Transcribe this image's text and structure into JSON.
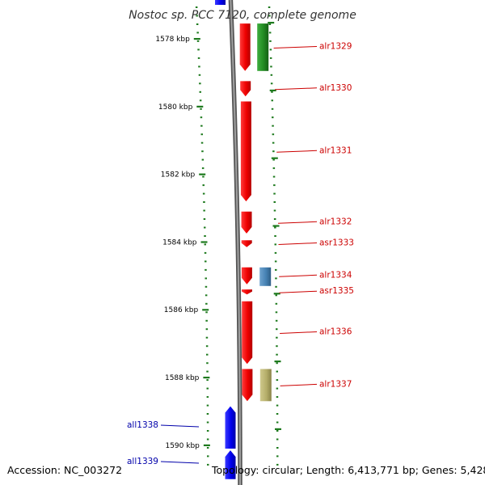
{
  "title": "Nostoc sp. PCC 7120, complete genome",
  "footer": {
    "accession": "Accession: NC_003272",
    "topology": "Topology: circular; Length: 6,413,771 bp; Genes: 5,428"
  },
  "colors": {
    "forward_label": "#cc0000",
    "reverse_label": "#0000aa",
    "tick": "#1e7a1e",
    "backbone": "#777777"
  },
  "axis": {
    "unit": "kbp",
    "ticks": [
      {
        "kbp": 1578,
        "label": "1578 kbp"
      },
      {
        "kbp": 1580,
        "label": "1580 kbp"
      },
      {
        "kbp": 1582,
        "label": "1582 kbp"
      },
      {
        "kbp": 1584,
        "label": "1584 kbp"
      },
      {
        "kbp": 1586,
        "label": "1586 kbp"
      },
      {
        "kbp": 1588,
        "label": "1588 kbp"
      },
      {
        "kbp": 1590,
        "label": "1590 kbp"
      }
    ]
  },
  "genes": [
    {
      "id": "alr1329",
      "strand": "+",
      "start_kbp": 1577.55,
      "end_kbp": 1578.95,
      "color": "#ee0000"
    },
    {
      "id": "alr1330",
      "strand": "+",
      "start_kbp": 1579.25,
      "end_kbp": 1579.7,
      "color": "#ee0000"
    },
    {
      "id": "alr1331",
      "strand": "+",
      "start_kbp": 1579.85,
      "end_kbp": 1582.8,
      "color": "#ee0000"
    },
    {
      "id": "alr1332",
      "strand": "+",
      "start_kbp": 1583.1,
      "end_kbp": 1583.75,
      "color": "#ee0000"
    },
    {
      "id": "asr1333",
      "strand": "+",
      "start_kbp": 1583.95,
      "end_kbp": 1584.15,
      "color": "#ee0000"
    },
    {
      "id": "alr1334",
      "strand": "+",
      "start_kbp": 1584.75,
      "end_kbp": 1585.25,
      "color": "#ee0000"
    },
    {
      "id": "asr1335",
      "strand": "+",
      "start_kbp": 1585.4,
      "end_kbp": 1585.55,
      "color": "#ee0000"
    },
    {
      "id": "alr1336",
      "strand": "+",
      "start_kbp": 1585.75,
      "end_kbp": 1587.6,
      "color": "#ee0000"
    },
    {
      "id": "alr1337",
      "strand": "+",
      "start_kbp": 1587.75,
      "end_kbp": 1588.7,
      "color": "#ee0000"
    },
    {
      "id": "all1338",
      "strand": "-",
      "start_kbp": 1588.85,
      "end_kbp": 1590.1,
      "color": "#0000ee"
    },
    {
      "id": "all1339",
      "strand": "-",
      "start_kbp": 1590.15,
      "end_kbp": 1591.0,
      "color": "#0000ee"
    }
  ],
  "features": [
    {
      "start_kbp": 1577.55,
      "end_kbp": 1578.95,
      "color": "#228b22"
    },
    {
      "start_kbp": 1584.75,
      "end_kbp": 1585.3,
      "color": "#4682b4"
    },
    {
      "start_kbp": 1587.75,
      "end_kbp": 1588.7,
      "color": "#b5ae6a"
    }
  ]
}
